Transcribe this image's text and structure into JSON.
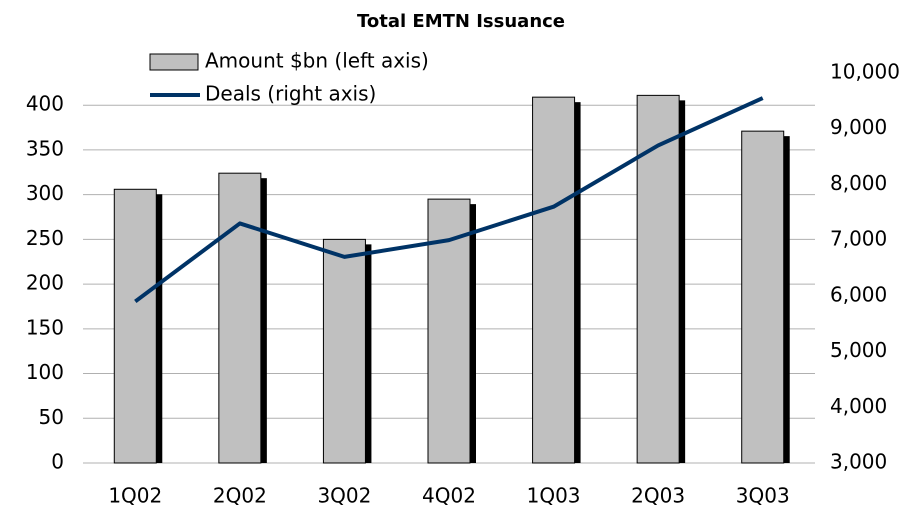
{
  "chart_data": {
    "type": "bar_line",
    "title": "Total EMTN Issuance",
    "categories": [
      "1Q02",
      "2Q02",
      "3Q02",
      "4Q02",
      "1Q03",
      "2Q03",
      "3Q03"
    ],
    "series": [
      {
        "name": "Amount $bn (left axis)",
        "type": "bar",
        "color": "#c0c0c0",
        "values": [
          306,
          324,
          250,
          295,
          409,
          411,
          371
        ]
      },
      {
        "name": "Deals (right axis)",
        "type": "line",
        "axis": "y2",
        "color": "#003366",
        "values": [
          5900,
          7300,
          6700,
          7000,
          7600,
          8700,
          9550
        ]
      }
    ],
    "ylim": [
      0,
      436
    ],
    "yticks": [
      0,
      50,
      100,
      150,
      200,
      250,
      300,
      350,
      400
    ],
    "y2lim": [
      3000,
      10000
    ],
    "y2ticks": [
      {
        "value": 3000,
        "label": "3,000"
      },
      {
        "value": 4000,
        "label": "4,000"
      },
      {
        "value": 5000,
        "label": "5,000"
      },
      {
        "value": 6000,
        "label": "6,000"
      },
      {
        "value": 7000,
        "label": "7,000"
      },
      {
        "value": 8000,
        "label": "8,000"
      },
      {
        "value": 9000,
        "label": "9,000"
      },
      {
        "value": 10000,
        "label": "10,000"
      }
    ],
    "grid": true
  }
}
